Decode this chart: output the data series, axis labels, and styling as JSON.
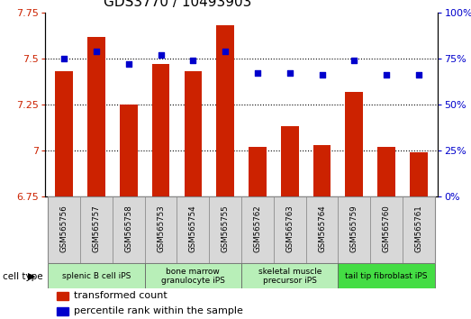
{
  "title": "GDS3770 / 10493903",
  "samples": [
    "GSM565756",
    "GSM565757",
    "GSM565758",
    "GSM565753",
    "GSM565754",
    "GSM565755",
    "GSM565762",
    "GSM565763",
    "GSM565764",
    "GSM565759",
    "GSM565760",
    "GSM565761"
  ],
  "red_values": [
    7.43,
    7.62,
    7.25,
    7.47,
    7.43,
    7.68,
    7.02,
    7.13,
    7.03,
    7.32,
    7.02,
    6.99
  ],
  "blue_values": [
    75,
    79,
    72,
    77,
    74,
    79,
    67,
    67,
    66,
    74,
    66,
    66
  ],
  "ylim_left": [
    6.75,
    7.75
  ],
  "ylim_right": [
    0,
    100
  ],
  "yticks_left": [
    6.75,
    7.0,
    7.25,
    7.5,
    7.75
  ],
  "yticks_right": [
    0,
    25,
    50,
    75,
    100
  ],
  "cell_type_groups": [
    {
      "label": "splenic B cell iPS",
      "indices": [
        0,
        1,
        2
      ],
      "color": "#b8efb8"
    },
    {
      "label": "bone marrow\ngranulocyte iPS",
      "indices": [
        3,
        4,
        5
      ],
      "color": "#b8efb8"
    },
    {
      "label": "skeletal muscle\nprecursor iPS",
      "indices": [
        6,
        7,
        8
      ],
      "color": "#b8efb8"
    },
    {
      "label": "tail tip fibroblast iPS",
      "indices": [
        9,
        10,
        11
      ],
      "color": "#44dd44"
    }
  ],
  "bar_color": "#cc2200",
  "dot_color": "#0000cc",
  "bar_bottom": 6.75,
  "title_fontsize": 11,
  "tick_fontsize": 8,
  "legend_fontsize": 8
}
